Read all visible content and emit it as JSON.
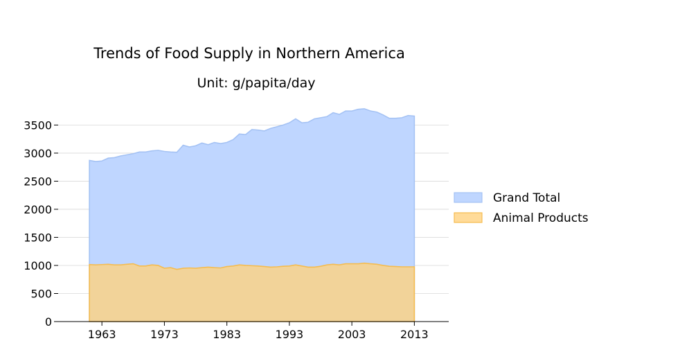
{
  "chart_data": {
    "type": "area",
    "title": "Trends of Food Supply in Northern America",
    "subtitle": "Unit: g/papita/day",
    "xlabel": "",
    "ylabel": "",
    "x": [
      1961,
      1962,
      1963,
      1964,
      1965,
      1966,
      1967,
      1968,
      1969,
      1970,
      1971,
      1972,
      1973,
      1974,
      1975,
      1976,
      1977,
      1978,
      1979,
      1980,
      1981,
      1982,
      1983,
      1984,
      1985,
      1986,
      1987,
      1988,
      1989,
      1990,
      1991,
      1992,
      1993,
      1994,
      1995,
      1996,
      1997,
      1998,
      1999,
      2000,
      2001,
      2002,
      2003,
      2004,
      2005,
      2006,
      2007,
      2008,
      2009,
      2010,
      2011,
      2012,
      2013
    ],
    "x_ticks": [
      "1963",
      "1973",
      "1983",
      "1993",
      "2003",
      "2013"
    ],
    "x_tick_values": [
      1963,
      1973,
      1983,
      1993,
      2003,
      2013
    ],
    "xlim": [
      1956,
      2018.5
    ],
    "y_ticks": [
      "0",
      "500",
      "1000",
      "1500",
      "2000",
      "2500",
      "3000",
      "3500"
    ],
    "y_tick_values": [
      0,
      500,
      1000,
      1500,
      2000,
      2500,
      3000,
      3500
    ],
    "ylim": [
      0,
      3900
    ],
    "grid": "horizontal",
    "legend_position": "right",
    "series": [
      {
        "name": "Grand Total",
        "fill": "#bfd6ff",
        "stroke": "#a4c2f4",
        "values": [
          2870,
          2850,
          2860,
          2910,
          2920,
          2950,
          2970,
          2990,
          3020,
          3020,
          3040,
          3050,
          3030,
          3020,
          3015,
          3140,
          3110,
          3130,
          3180,
          3150,
          3190,
          3170,
          3190,
          3240,
          3340,
          3330,
          3420,
          3410,
          3395,
          3440,
          3470,
          3500,
          3540,
          3610,
          3540,
          3550,
          3610,
          3630,
          3650,
          3720,
          3690,
          3750,
          3750,
          3780,
          3790,
          3750,
          3730,
          3680,
          3620,
          3620,
          3630,
          3670,
          3660
        ]
      },
      {
        "name": "Animal Products",
        "fill": "#ffd27f",
        "stroke": "#f5bc50",
        "values": [
          1015,
          1010,
          1015,
          1020,
          1010,
          1010,
          1020,
          1030,
          990,
          990,
          1010,
          1000,
          950,
          960,
          930,
          950,
          955,
          950,
          960,
          970,
          960,
          955,
          980,
          990,
          1010,
          1000,
          995,
          990,
          980,
          970,
          975,
          985,
          990,
          1010,
          990,
          970,
          970,
          985,
          1010,
          1020,
          1010,
          1030,
          1030,
          1030,
          1040,
          1030,
          1020,
          1000,
          985,
          980,
          975,
          975,
          975
        ]
      }
    ]
  }
}
